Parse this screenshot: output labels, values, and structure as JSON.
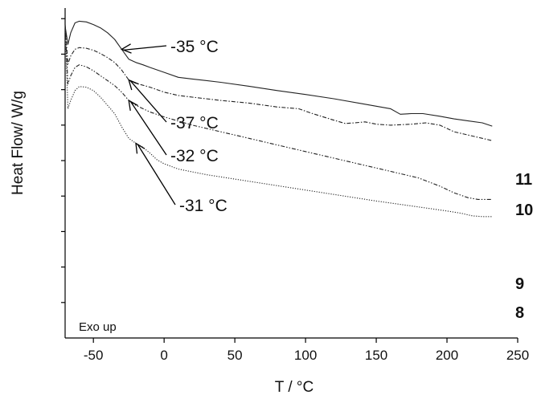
{
  "chart_data": {
    "type": "line",
    "xlabel": "T / °C",
    "ylabel": "Heat Flow/  W/g",
    "xlim": [
      -70,
      250
    ],
    "xticks": [
      -50,
      0,
      50,
      100,
      150,
      200,
      250
    ],
    "ylim": [
      0,
      10
    ],
    "y_tick_count": 9,
    "y_tick_labels_shown": false,
    "grid": false,
    "legend": "none",
    "corner_note": "Exo up",
    "series": [
      {
        "name": "11",
        "style": "solid",
        "points": [
          [
            -70,
            9.45
          ],
          [
            -68,
            8.9
          ],
          [
            -66,
            9.25
          ],
          [
            -63,
            9.55
          ],
          [
            -60,
            9.6
          ],
          [
            -55,
            9.58
          ],
          [
            -50,
            9.5
          ],
          [
            -45,
            9.4
          ],
          [
            -40,
            9.25
          ],
          [
            -35,
            9.05
          ],
          [
            -30,
            8.75
          ],
          [
            -25,
            8.45
          ],
          [
            -20,
            8.35
          ],
          [
            -15,
            8.28
          ],
          [
            -10,
            8.2
          ],
          [
            0,
            8.05
          ],
          [
            10,
            7.9
          ],
          [
            20,
            7.85
          ],
          [
            40,
            7.75
          ],
          [
            60,
            7.63
          ],
          [
            80,
            7.5
          ],
          [
            100,
            7.38
          ],
          [
            120,
            7.25
          ],
          [
            140,
            7.1
          ],
          [
            160,
            6.95
          ],
          [
            167,
            6.78
          ],
          [
            175,
            6.8
          ],
          [
            183,
            6.8
          ],
          [
            195,
            6.72
          ],
          [
            205,
            6.64
          ],
          [
            215,
            6.58
          ],
          [
            225,
            6.52
          ],
          [
            232,
            6.42
          ]
        ]
      },
      {
        "name": "10",
        "style": "dash-dot",
        "points": [
          [
            -70,
            9.5
          ],
          [
            -68,
            8.3
          ],
          [
            -66,
            8.55
          ],
          [
            -63,
            8.75
          ],
          [
            -60,
            8.8
          ],
          [
            -55,
            8.78
          ],
          [
            -50,
            8.72
          ],
          [
            -45,
            8.62
          ],
          [
            -40,
            8.5
          ],
          [
            -35,
            8.35
          ],
          [
            -30,
            8.12
          ],
          [
            -25,
            7.82
          ],
          [
            -20,
            7.72
          ],
          [
            -10,
            7.6
          ],
          [
            0,
            7.45
          ],
          [
            10,
            7.35
          ],
          [
            20,
            7.3
          ],
          [
            40,
            7.2
          ],
          [
            60,
            7.12
          ],
          [
            80,
            7.0
          ],
          [
            95,
            6.95
          ],
          [
            105,
            6.8
          ],
          [
            120,
            6.6
          ],
          [
            128,
            6.5
          ],
          [
            135,
            6.52
          ],
          [
            142,
            6.55
          ],
          [
            150,
            6.48
          ],
          [
            160,
            6.45
          ],
          [
            175,
            6.48
          ],
          [
            185,
            6.52
          ],
          [
            195,
            6.45
          ],
          [
            205,
            6.25
          ],
          [
            215,
            6.15
          ],
          [
            225,
            6.05
          ],
          [
            232,
            5.98
          ]
        ]
      },
      {
        "name": "9",
        "style": "dash-dot-dot",
        "points": [
          [
            -70,
            9.5
          ],
          [
            -68,
            7.7
          ],
          [
            -66,
            7.95
          ],
          [
            -63,
            8.2
          ],
          [
            -60,
            8.28
          ],
          [
            -55,
            8.22
          ],
          [
            -50,
            8.1
          ],
          [
            -45,
            7.95
          ],
          [
            -40,
            7.8
          ],
          [
            -35,
            7.65
          ],
          [
            -30,
            7.45
          ],
          [
            -25,
            7.2
          ],
          [
            -20,
            7.05
          ],
          [
            -10,
            6.85
          ],
          [
            0,
            6.7
          ],
          [
            20,
            6.45
          ],
          [
            40,
            6.25
          ],
          [
            60,
            6.05
          ],
          [
            80,
            5.85
          ],
          [
            100,
            5.65
          ],
          [
            120,
            5.45
          ],
          [
            140,
            5.25
          ],
          [
            160,
            5.05
          ],
          [
            180,
            4.85
          ],
          [
            195,
            4.6
          ],
          [
            205,
            4.4
          ],
          [
            215,
            4.25
          ],
          [
            222,
            4.2
          ],
          [
            232,
            4.2
          ]
        ]
      },
      {
        "name": "8",
        "style": "dotted",
        "points": [
          [
            -70,
            9.5
          ],
          [
            -68,
            6.95
          ],
          [
            -66,
            7.2
          ],
          [
            -63,
            7.5
          ],
          [
            -60,
            7.62
          ],
          [
            -55,
            7.6
          ],
          [
            -50,
            7.5
          ],
          [
            -45,
            7.3
          ],
          [
            -40,
            7.05
          ],
          [
            -35,
            6.8
          ],
          [
            -30,
            6.4
          ],
          [
            -25,
            6.05
          ],
          [
            -20,
            5.9
          ],
          [
            -15,
            5.78
          ],
          [
            -10,
            5.6
          ],
          [
            -5,
            5.4
          ],
          [
            0,
            5.28
          ],
          [
            10,
            5.12
          ],
          [
            30,
            4.95
          ],
          [
            60,
            4.75
          ],
          [
            90,
            4.55
          ],
          [
            120,
            4.35
          ],
          [
            150,
            4.15
          ],
          [
            180,
            3.97
          ],
          [
            200,
            3.85
          ],
          [
            210,
            3.78
          ],
          [
            218,
            3.7
          ],
          [
            225,
            3.68
          ],
          [
            232,
            3.68
          ]
        ]
      }
    ],
    "annotations": [
      {
        "text": "-35 °C",
        "series": "11",
        "x": -30,
        "y": 8.75
      },
      {
        "text": "-37 °C",
        "series": "10",
        "x": -25,
        "y": 7.82
      },
      {
        "text": "-32 °C",
        "series": "9",
        "x": -25,
        "y": 7.2
      },
      {
        "text": "-31 °C",
        "series": "8",
        "x": -20,
        "y": 5.9
      }
    ]
  }
}
